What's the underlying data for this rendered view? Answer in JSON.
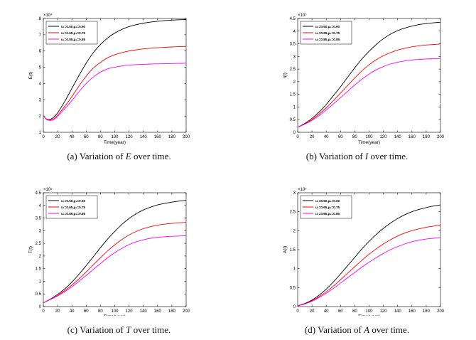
{
  "figure": {
    "legend_labels": [
      "u₁=0.50,μ₂=0.60",
      "u₁=0.65,μ₂=0.75",
      "u₁=0.85,μ₂=0.85"
    ],
    "series_colors": [
      "#000000",
      "#ff0000",
      "#ff00ff"
    ]
  },
  "chart_data": [
    {
      "type": "line",
      "panel": "a",
      "caption_prefix": "(a) Variation of ",
      "caption_var": "E",
      "caption_suffix": " over time.",
      "xlabel": "Time(year)",
      "ylabel": "E(t)",
      "exponent": "×10⁴",
      "xlim": [
        0,
        200
      ],
      "ylim": [
        1,
        8
      ],
      "xticks": [
        0,
        20,
        40,
        60,
        80,
        100,
        120,
        140,
        160,
        180,
        200
      ],
      "yticks": [
        1,
        2,
        3,
        4,
        5,
        6,
        7,
        8
      ],
      "x": [
        0,
        5,
        10,
        15,
        20,
        30,
        40,
        50,
        60,
        70,
        80,
        90,
        100,
        110,
        120,
        130,
        140,
        150,
        160,
        170,
        180,
        190,
        200
      ],
      "series": [
        {
          "name": "u₁=0.50,μ₂=0.60",
          "values": [
            2.0,
            1.8,
            1.8,
            1.95,
            2.2,
            2.9,
            3.7,
            4.5,
            5.25,
            5.9,
            6.4,
            6.8,
            7.1,
            7.33,
            7.5,
            7.62,
            7.71,
            7.78,
            7.83,
            7.87,
            7.9,
            7.92,
            7.94
          ]
        },
        {
          "name": "u₁=0.65,μ₂=0.75",
          "values": [
            2.0,
            1.78,
            1.75,
            1.85,
            2.05,
            2.6,
            3.2,
            3.85,
            4.45,
            4.95,
            5.3,
            5.58,
            5.77,
            5.9,
            6.0,
            6.07,
            6.13,
            6.17,
            6.2,
            6.23,
            6.25,
            6.27,
            6.28
          ]
        },
        {
          "name": "u₁=0.85,μ₂=0.85",
          "values": [
            2.0,
            1.77,
            1.73,
            1.8,
            1.97,
            2.45,
            2.95,
            3.5,
            4.0,
            4.4,
            4.7,
            4.9,
            5.0,
            5.08,
            5.13,
            5.16,
            5.18,
            5.2,
            5.21,
            5.22,
            5.23,
            5.24,
            5.25
          ]
        }
      ]
    },
    {
      "type": "line",
      "panel": "b",
      "caption_prefix": "(b) Variation of ",
      "caption_var": "I",
      "caption_suffix": " over time.",
      "xlabel": "Time(year)",
      "ylabel": "I(t)",
      "exponent": "×10⁵",
      "xlim": [
        0,
        200
      ],
      "ylim": [
        0,
        4.5
      ],
      "xticks": [
        0,
        20,
        40,
        60,
        80,
        100,
        120,
        140,
        160,
        180,
        200
      ],
      "yticks": [
        0,
        0.5,
        1,
        1.5,
        2,
        2.5,
        3,
        3.5,
        4,
        4.5
      ],
      "x": [
        0,
        10,
        20,
        30,
        40,
        50,
        60,
        70,
        80,
        90,
        100,
        110,
        120,
        130,
        140,
        150,
        160,
        170,
        180,
        190,
        200
      ],
      "series": [
        {
          "name": "u₁=0.50,μ₂=0.60",
          "values": [
            0.2,
            0.35,
            0.55,
            0.8,
            1.1,
            1.45,
            1.8,
            2.18,
            2.55,
            2.9,
            3.2,
            3.47,
            3.7,
            3.88,
            4.02,
            4.12,
            4.2,
            4.26,
            4.3,
            4.33,
            4.35
          ]
        },
        {
          "name": "u₁=0.65,μ₂=0.75",
          "values": [
            0.2,
            0.33,
            0.5,
            0.72,
            0.97,
            1.25,
            1.55,
            1.85,
            2.15,
            2.43,
            2.67,
            2.87,
            3.03,
            3.15,
            3.25,
            3.32,
            3.38,
            3.42,
            3.45,
            3.47,
            3.49
          ]
        },
        {
          "name": "u₁=0.85,μ₂=0.85",
          "values": [
            0.2,
            0.32,
            0.47,
            0.66,
            0.88,
            1.12,
            1.37,
            1.62,
            1.87,
            2.1,
            2.3,
            2.47,
            2.6,
            2.7,
            2.77,
            2.82,
            2.86,
            2.88,
            2.9,
            2.91,
            2.92
          ]
        }
      ]
    },
    {
      "type": "line",
      "panel": "c",
      "caption_prefix": "(c) Variation of ",
      "caption_var": "T",
      "caption_suffix": " over time.",
      "xlabel": "Time(year)",
      "ylabel": "T(t)",
      "exponent": "×10⁵",
      "xlim": [
        0,
        200
      ],
      "ylim": [
        0,
        4.5
      ],
      "xticks": [
        0,
        20,
        40,
        60,
        80,
        100,
        120,
        140,
        160,
        180,
        200
      ],
      "yticks": [
        0,
        0.5,
        1,
        1.5,
        2,
        2.5,
        3,
        3.5,
        4,
        4.5
      ],
      "x": [
        0,
        10,
        20,
        30,
        40,
        50,
        60,
        70,
        80,
        90,
        100,
        110,
        120,
        130,
        140,
        150,
        160,
        170,
        180,
        190,
        200
      ],
      "series": [
        {
          "name": "u₁=0.50,μ₂=0.60",
          "values": [
            0.15,
            0.3,
            0.48,
            0.7,
            0.97,
            1.28,
            1.62,
            1.97,
            2.33,
            2.67,
            2.97,
            3.25,
            3.48,
            3.67,
            3.82,
            3.93,
            4.02,
            4.08,
            4.13,
            4.17,
            4.2
          ]
        },
        {
          "name": "u₁=0.65,μ₂=0.75",
          "values": [
            0.15,
            0.29,
            0.44,
            0.63,
            0.85,
            1.1,
            1.37,
            1.65,
            1.93,
            2.2,
            2.44,
            2.65,
            2.83,
            2.97,
            3.08,
            3.16,
            3.22,
            3.26,
            3.29,
            3.31,
            3.33
          ]
        },
        {
          "name": "u₁=0.85,μ₂=0.85",
          "values": [
            0.15,
            0.28,
            0.42,
            0.59,
            0.78,
            1.0,
            1.23,
            1.47,
            1.7,
            1.93,
            2.13,
            2.3,
            2.45,
            2.56,
            2.64,
            2.7,
            2.74,
            2.76,
            2.78,
            2.79,
            2.8
          ]
        }
      ]
    },
    {
      "type": "line",
      "panel": "d",
      "caption_prefix": "(d) Variation of ",
      "caption_var": "A",
      "caption_suffix": " over time.",
      "xlabel": "Time(year)",
      "ylabel": "A(t)",
      "exponent": "×10⁵",
      "xlim": [
        0,
        200
      ],
      "ylim": [
        0,
        3
      ],
      "xticks": [
        0,
        20,
        40,
        60,
        80,
        100,
        120,
        140,
        160,
        180,
        200
      ],
      "yticks": [
        0,
        0.5,
        1,
        1.5,
        2,
        2.5,
        3
      ],
      "x": [
        0,
        10,
        20,
        30,
        40,
        50,
        60,
        70,
        80,
        90,
        100,
        110,
        120,
        130,
        140,
        150,
        160,
        170,
        180,
        190,
        200
      ],
      "series": [
        {
          "name": "u₁=0.50,μ₂=0.60",
          "values": [
            0.02,
            0.08,
            0.17,
            0.3,
            0.46,
            0.65,
            0.86,
            1.08,
            1.3,
            1.52,
            1.72,
            1.9,
            2.06,
            2.2,
            2.32,
            2.42,
            2.5,
            2.56,
            2.61,
            2.65,
            2.68
          ]
        },
        {
          "name": "u₁=0.65,μ₂=0.75",
          "values": [
            0.02,
            0.07,
            0.15,
            0.26,
            0.39,
            0.54,
            0.71,
            0.88,
            1.05,
            1.22,
            1.38,
            1.52,
            1.65,
            1.76,
            1.86,
            1.94,
            2.0,
            2.05,
            2.09,
            2.12,
            2.15
          ]
        },
        {
          "name": "u₁=0.85,μ₂=0.85",
          "values": [
            0.02,
            0.07,
            0.14,
            0.24,
            0.35,
            0.48,
            0.62,
            0.76,
            0.9,
            1.04,
            1.17,
            1.29,
            1.4,
            1.5,
            1.58,
            1.65,
            1.71,
            1.75,
            1.78,
            1.8,
            1.82
          ]
        }
      ]
    }
  ]
}
